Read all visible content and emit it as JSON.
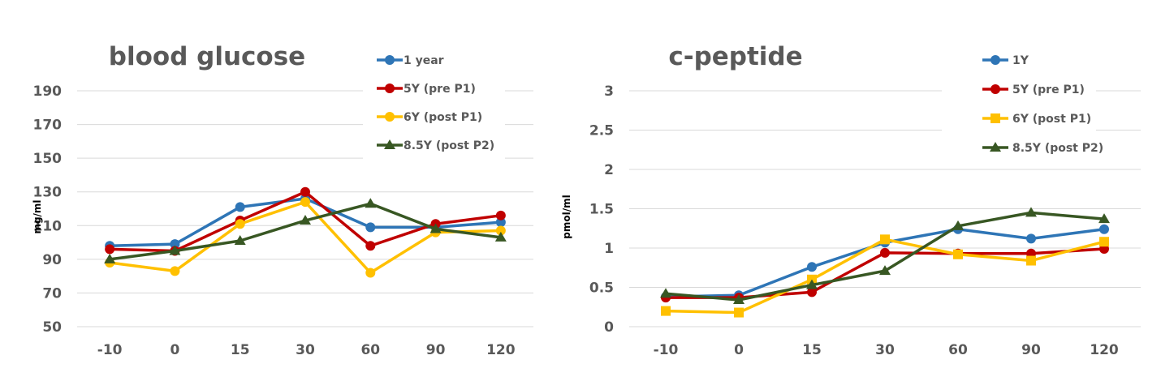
{
  "chart_data": [
    {
      "type": "line",
      "title": "blood glucose",
      "xlabel": "",
      "ylabel": "mg/ml",
      "categories": [
        "-10",
        "0",
        "15",
        "30",
        "60",
        "90",
        "120"
      ],
      "y_ticks": [
        "50",
        "70",
        "90",
        "110",
        "130",
        "150",
        "170",
        "190"
      ],
      "ylim": [
        50,
        190
      ],
      "grid": true,
      "legend_position": "top-right",
      "series": [
        {
          "name": "1 year",
          "color": "#2e75b6",
          "marker": "circle",
          "values": [
            98,
            99,
            121,
            126,
            109,
            109,
            112
          ]
        },
        {
          "name": "5Y (pre P1)",
          "color": "#c00000",
          "marker": "circle",
          "values": [
            96,
            95,
            113,
            130,
            98,
            111,
            116
          ]
        },
        {
          "name": "6Y (post P1)",
          "color": "#ffc000",
          "marker": "circle",
          "values": [
            88,
            83,
            111,
            124,
            82,
            106,
            107
          ]
        },
        {
          "name": "8.5Y (post P2)",
          "color": "#385723",
          "marker": "triangle",
          "values": [
            90,
            95,
            101,
            113,
            123,
            108,
            103
          ]
        }
      ]
    },
    {
      "type": "line",
      "title": "c-peptide",
      "xlabel": "",
      "ylabel": "pmol/ml",
      "categories": [
        "-10",
        "0",
        "15",
        "30",
        "60",
        "90",
        "120"
      ],
      "y_ticks": [
        "0",
        "0.5",
        "1",
        "1.5",
        "2",
        "2.5",
        "3"
      ],
      "ylim": [
        0,
        3
      ],
      "grid": true,
      "legend_position": "top-right",
      "series": [
        {
          "name": "1Y",
          "color": "#2e75b6",
          "marker": "circle",
          "values": [
            0.38,
            0.4,
            0.76,
            1.07,
            1.24,
            1.12,
            1.24
          ]
        },
        {
          "name": "5Y (pre P1)",
          "color": "#c00000",
          "marker": "circle",
          "values": [
            0.37,
            0.37,
            0.44,
            0.94,
            0.93,
            0.93,
            0.99
          ]
        },
        {
          "name": "6Y (post P1)",
          "color": "#ffc000",
          "marker": "square",
          "values": [
            0.2,
            0.18,
            0.6,
            1.11,
            0.92,
            0.84,
            1.08
          ]
        },
        {
          "name": "8.5Y (post P2)",
          "color": "#385723",
          "marker": "triangle",
          "values": [
            0.42,
            0.34,
            0.53,
            0.71,
            1.28,
            1.45,
            1.37
          ]
        }
      ]
    }
  ]
}
